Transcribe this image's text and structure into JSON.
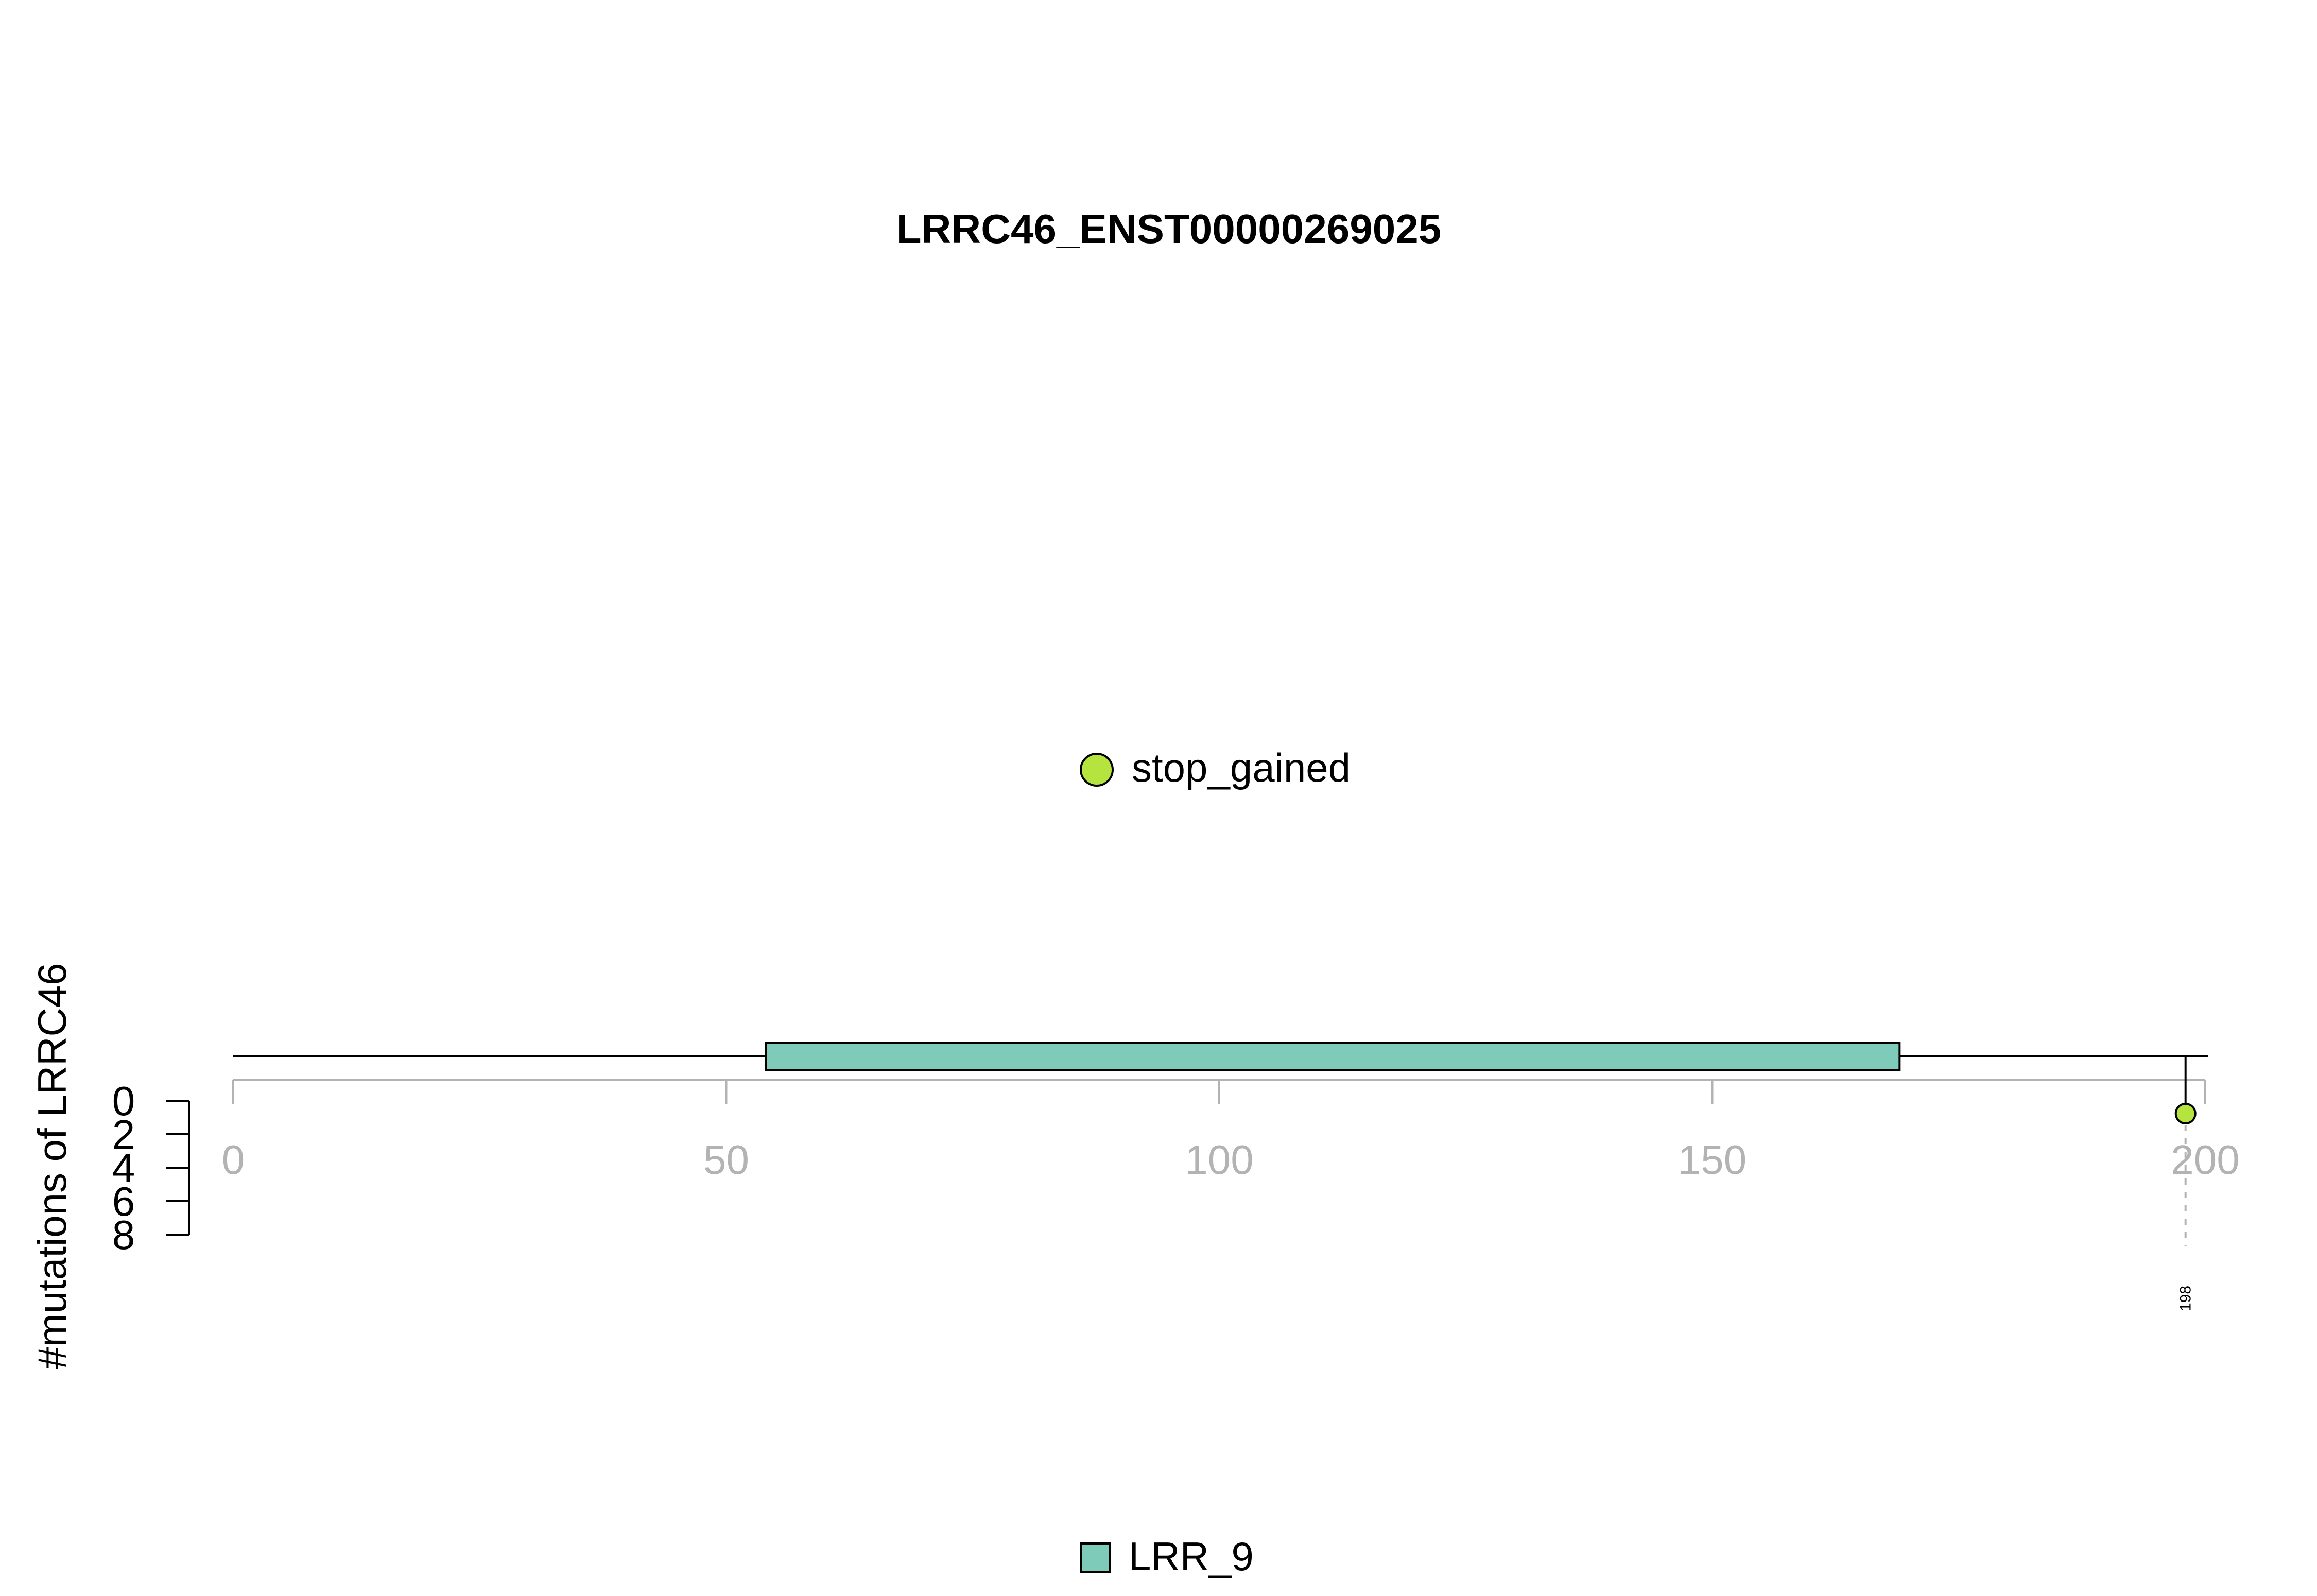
{
  "chart_data": {
    "type": "lollipop",
    "title": "LRRC46_ENST00000269025",
    "ylabel": "#mutations of LRRC46",
    "x_range": [
      0,
      200
    ],
    "x_ticks": [
      "0",
      "50",
      "100",
      "150",
      "200"
    ],
    "y_ticks": [
      "0",
      "2",
      "4",
      "6",
      "8"
    ],
    "protein_length": 200,
    "domains": [
      {
        "name": "LRR_9",
        "start": 54,
        "end": 169,
        "color": "#7fcbb9"
      }
    ],
    "mutations": [
      {
        "position": 198,
        "label": "198",
        "count": 1,
        "type": "stop_gained",
        "color": "#b5e43f"
      }
    ],
    "mutation_legend": [
      {
        "label": "stop_gained",
        "color": "#b5e43f"
      }
    ],
    "domain_legend": [
      {
        "label": "LRR_9",
        "color": "#7fcbb9"
      }
    ],
    "colors": {
      "axis_gray": "#b3b3b3",
      "stroke": "#000000"
    }
  }
}
